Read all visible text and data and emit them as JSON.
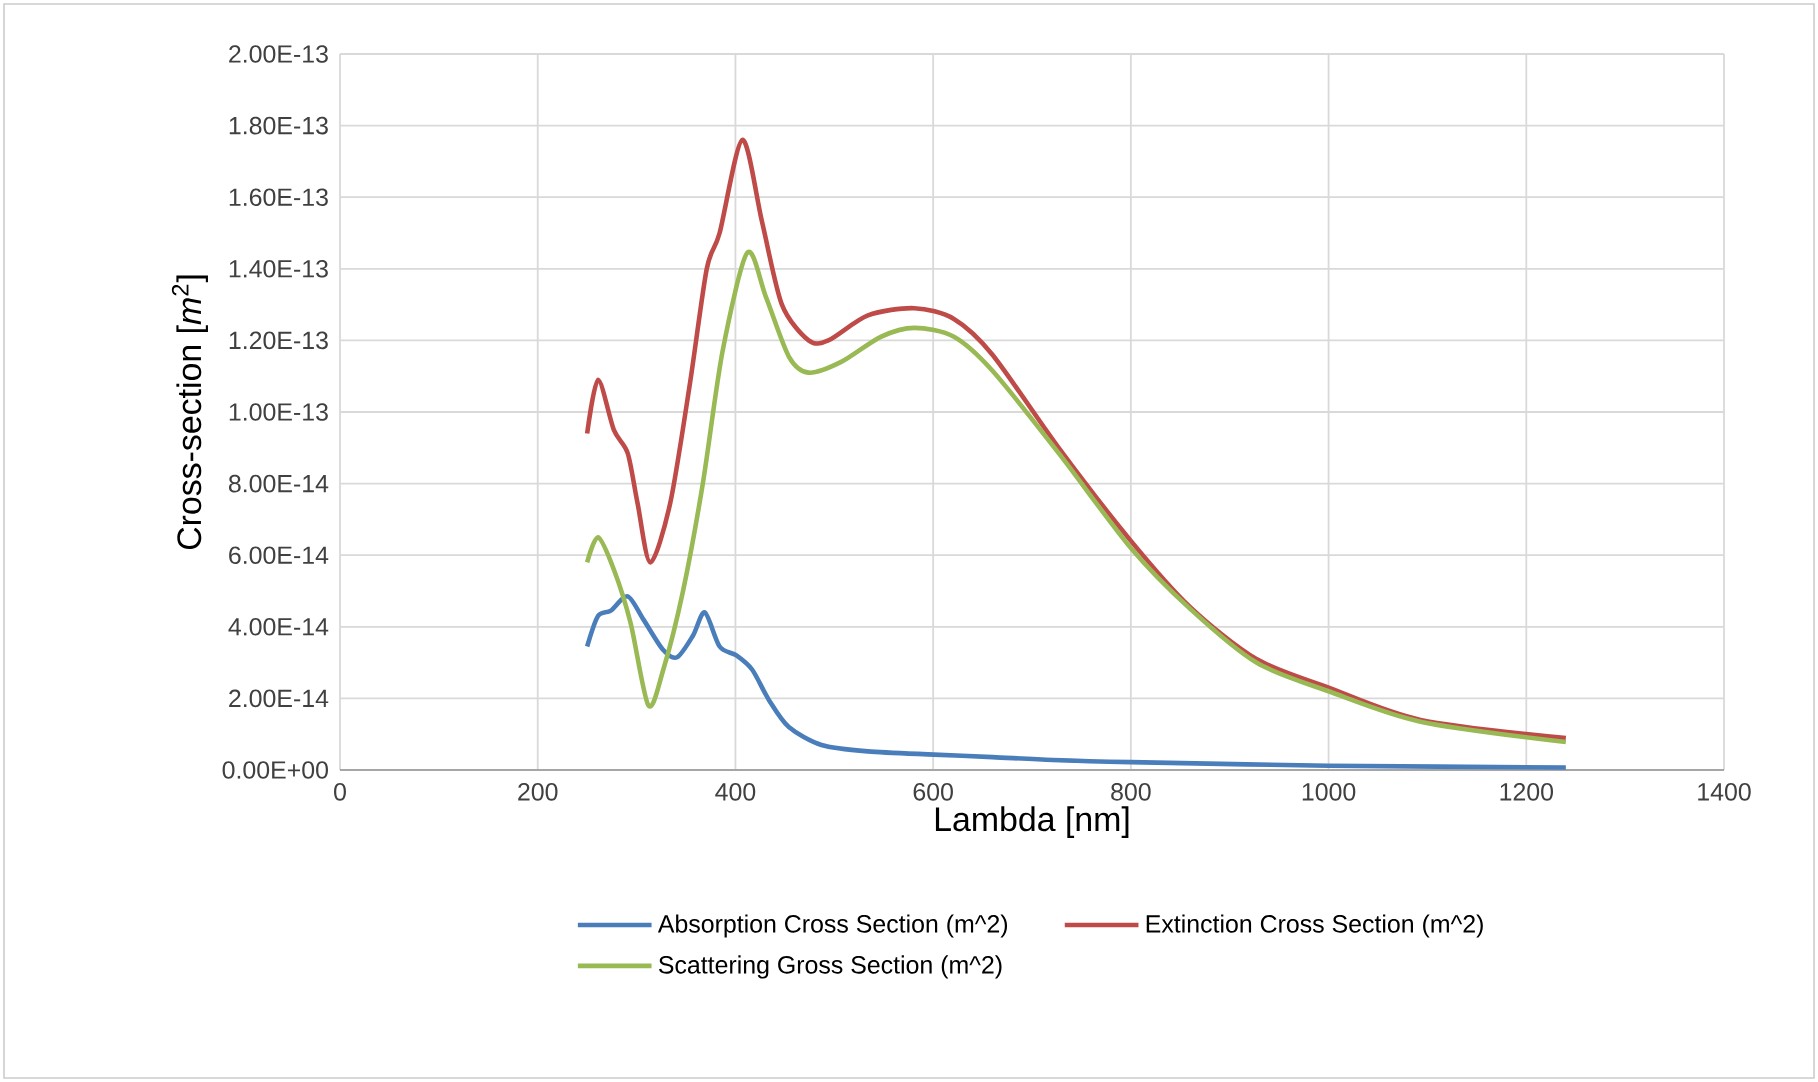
{
  "chart_data": {
    "type": "line",
    "xlabel": "Lambda [nm]",
    "ylabel": "Cross-section [*m*$^{2}$]",
    "xlim": [
      0,
      1400
    ],
    "xticks": [
      0,
      200,
      400,
      600,
      800,
      1000,
      1200,
      1400
    ],
    "ylim": [
      0,
      2e-13
    ],
    "yticks": [
      {
        "value": 0,
        "label": "0.00E+00"
      },
      {
        "value": 2e-14,
        "label": "2.00E-14"
      },
      {
        "value": 4e-14,
        "label": "4.00E-14"
      },
      {
        "value": 6e-14,
        "label": "6.00E-14"
      },
      {
        "value": 8e-14,
        "label": "8.00E-14"
      },
      {
        "value": 1e-13,
        "label": "1.00E-13"
      },
      {
        "value": 1.2e-13,
        "label": "1.20E-13"
      },
      {
        "value": 1.4e-13,
        "label": "1.40E-13"
      },
      {
        "value": 1.6e-13,
        "label": "1.60E-13"
      },
      {
        "value": 1.8e-13,
        "label": "1.80E-13"
      },
      {
        "value": 2e-13,
        "label": "2.00E-13"
      }
    ],
    "grid": true,
    "legend": "bottom",
    "marker": "none",
    "line_style": "solid",
    "series": [
      {
        "name": "Absorption Cross Section (m^2)",
        "color": "#4a7ebb",
        "x": [
          250,
          261,
          274,
          291,
          307,
          327,
          341,
          357,
          369,
          384,
          401,
          417,
          434,
          454,
          487,
          534,
          601,
          660,
          721,
          800,
          1000,
          1240
        ],
        "values": [
          3.45e-14,
          4.3e-14,
          4.45e-14,
          4.85e-14,
          4.2e-14,
          3.35e-14,
          3.15e-14,
          3.75e-14,
          4.4e-14,
          3.45e-14,
          3.2e-14,
          2.8e-14,
          1.95e-14,
          1.2e-14,
          7e-15,
          5.2e-15,
          4.3e-15,
          3.6e-15,
          2.8e-15,
          2.2e-15,
          1.2e-15,
          7e-16
        ]
      },
      {
        "name": "Extinction Cross Section (m^2)",
        "color": "#be4b48",
        "x": [
          250,
          261,
          277,
          291,
          301,
          314,
          334,
          354,
          371,
          384,
          407,
          427,
          447,
          474,
          494,
          534,
          581,
          621,
          660,
          727,
          800,
          860,
          927,
          1000,
          1093,
          1240
        ],
        "values": [
          9.4e-14,
          1.09e-13,
          9.5e-14,
          8.85e-14,
          7.45e-14,
          5.8e-14,
          7.45e-14,
          1.08e-13,
          1.4e-13,
          1.5e-13,
          1.76e-13,
          1.53e-13,
          1.3e-13,
          1.2e-13,
          1.2e-13,
          1.27e-13,
          1.29e-13,
          1.26e-13,
          1.16e-13,
          9e-14,
          6.4e-14,
          4.55e-14,
          3.1e-14,
          2.3e-14,
          1.4e-14,
          8.9e-15
        ]
      },
      {
        "name": "Scattering Gross Section (m^2)",
        "color": "#98b954",
        "x": [
          250,
          261,
          277,
          294,
          312,
          327,
          347,
          367,
          387,
          412,
          431,
          454,
          474,
          507,
          547,
          581,
          621,
          660,
          727,
          800,
          860,
          927,
          1000,
          1093,
          1240
        ],
        "values": [
          5.8e-14,
          6.5e-14,
          5.6e-14,
          4.1e-14,
          1.8e-14,
          2.8e-14,
          5e-14,
          8e-14,
          1.17e-13,
          1.445e-13,
          1.32e-13,
          1.155e-13,
          1.11e-13,
          1.14e-13,
          1.21e-13,
          1.235e-13,
          1.21e-13,
          1.115e-13,
          8.85e-14,
          6.2e-14,
          4.5e-14,
          3e-14,
          2.2e-14,
          1.35e-14,
          7.8e-15
        ]
      }
    ]
  }
}
